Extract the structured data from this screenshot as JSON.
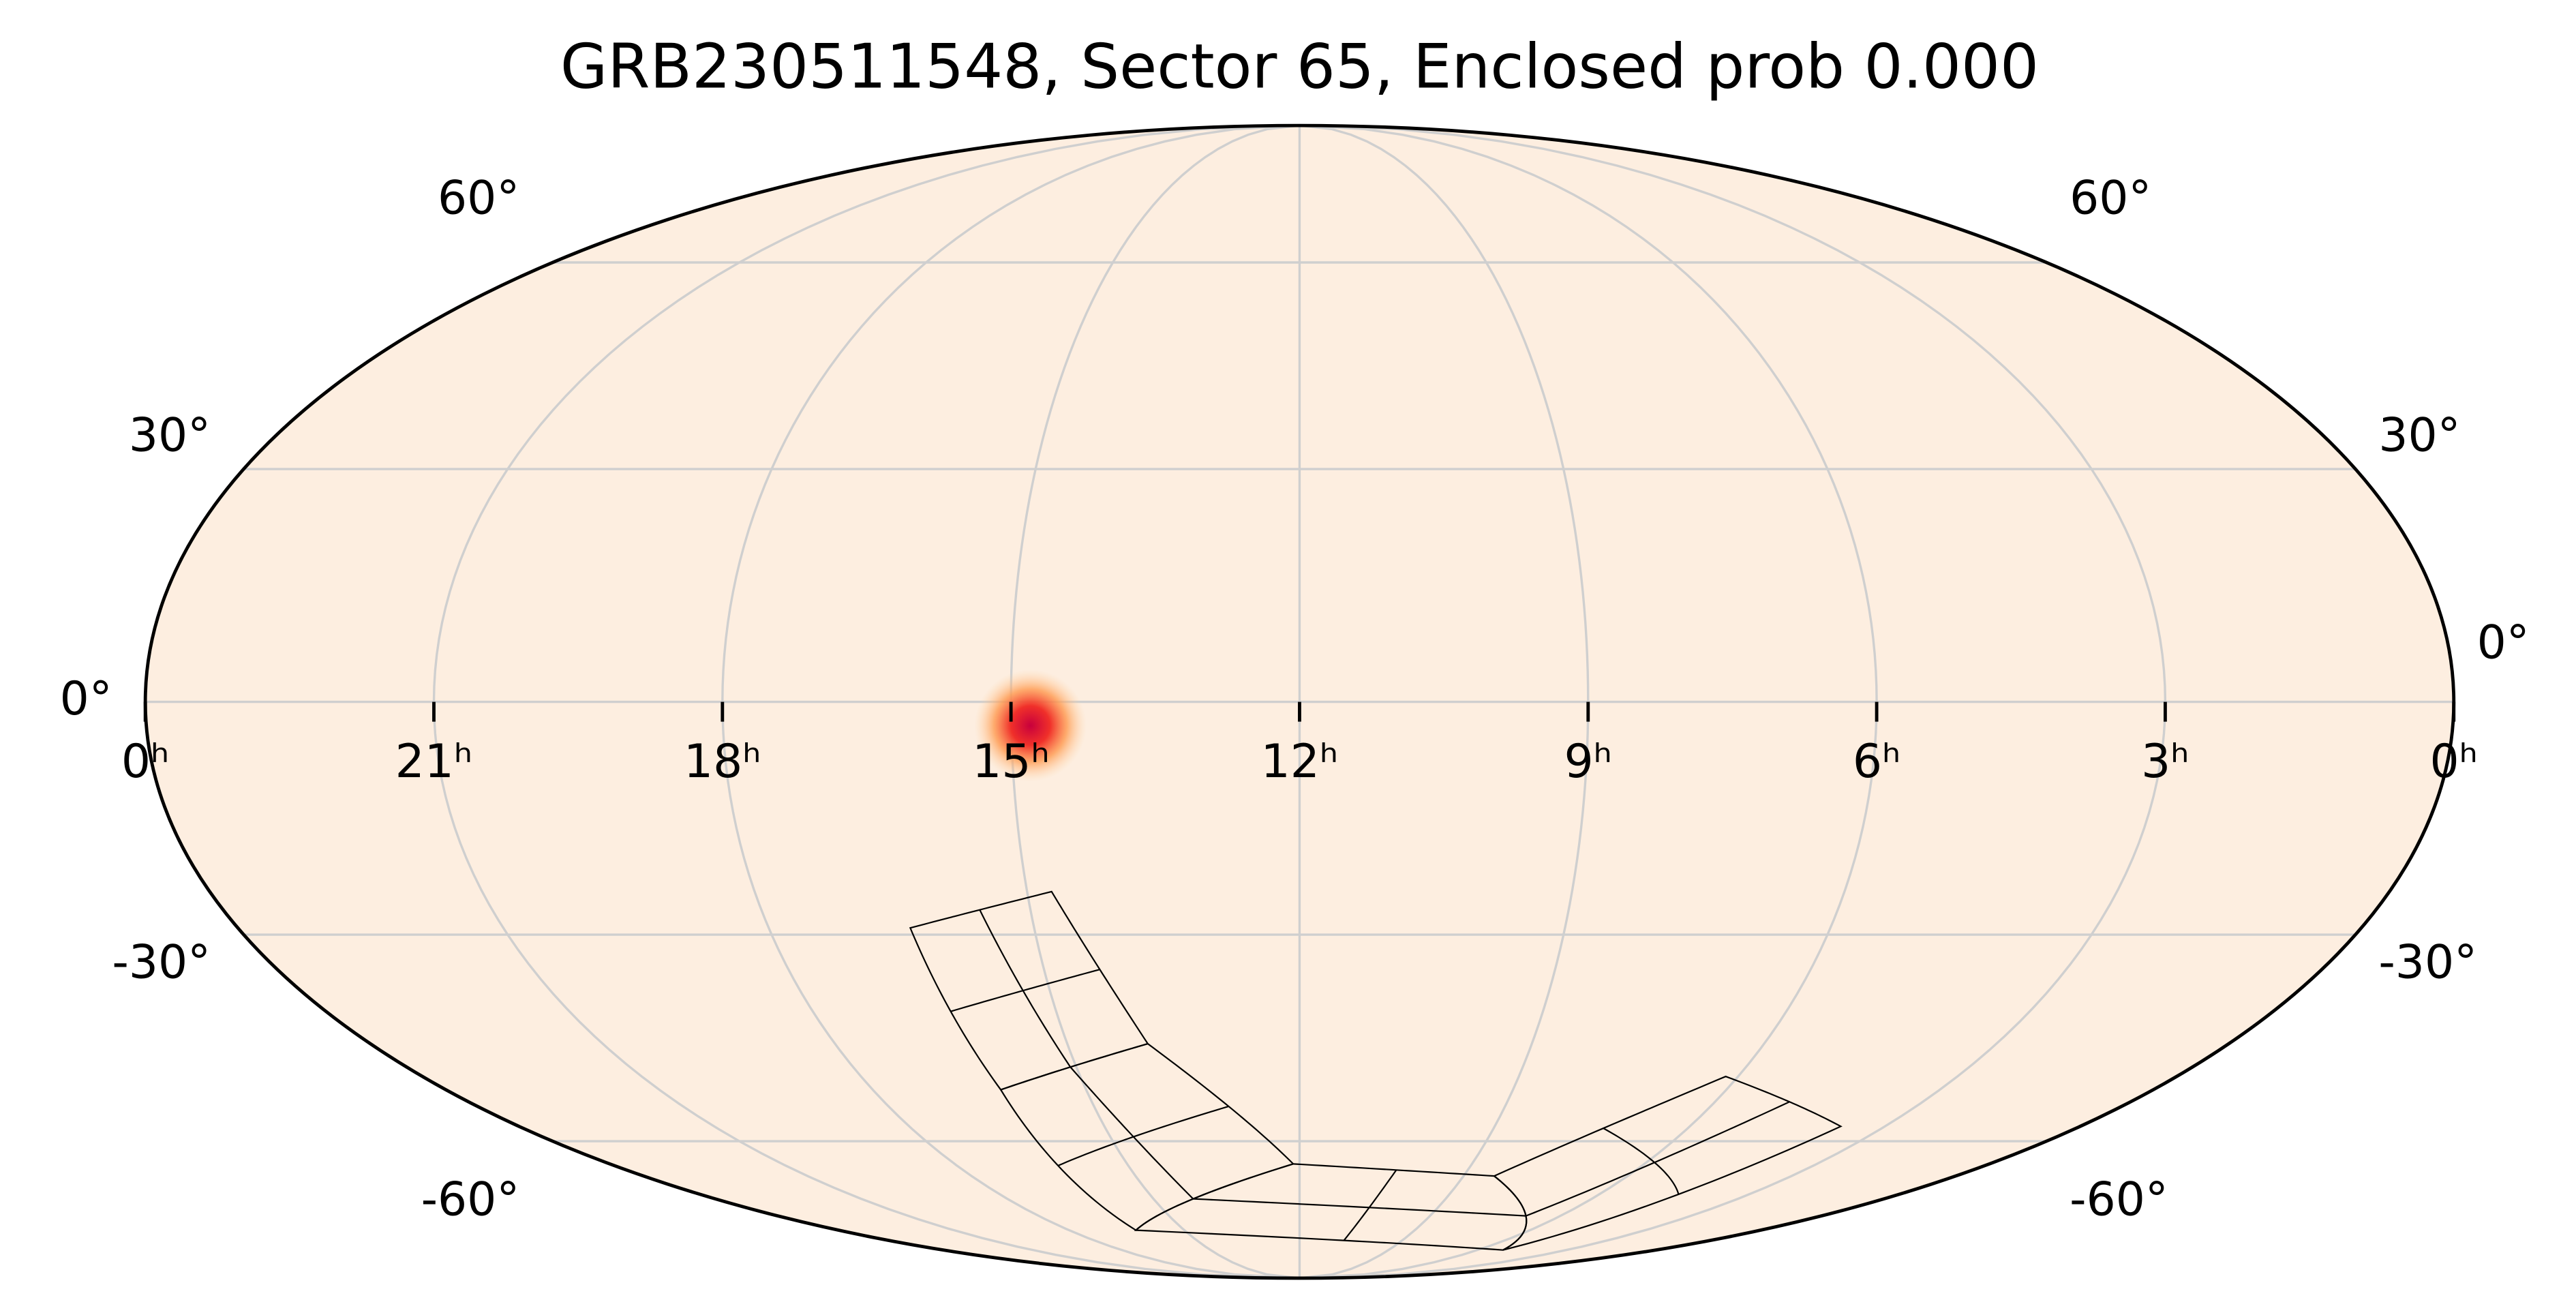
{
  "chart_data": {
    "type": "mollweide",
    "title": "GRB230511548, Sector 65, Enclosed prob 0.000",
    "xlim": [
      24,
      0
    ],
    "ylim": [
      -90,
      90
    ],
    "xticks": [
      {
        "value": 24,
        "label": "0ʰ"
      },
      {
        "value": 21,
        "label": "21ʰ"
      },
      {
        "value": 18,
        "label": "18ʰ"
      },
      {
        "value": 15,
        "label": "15ʰ"
      },
      {
        "value": 12,
        "label": "12ʰ"
      },
      {
        "value": 9,
        "label": "9ʰ"
      },
      {
        "value": 6,
        "label": "6ʰ"
      },
      {
        "value": 3,
        "label": "3ʰ"
      },
      {
        "value": 0,
        "label": "0ʰ"
      }
    ],
    "yticks": [
      {
        "value": -60,
        "label": "-60°"
      },
      {
        "value": -30,
        "label": "-30°"
      },
      {
        "value": 0,
        "label": "0°"
      },
      {
        "value": 30,
        "label": "30°"
      },
      {
        "value": 60,
        "label": "60°"
      }
    ],
    "grid": true,
    "background_color": "#fdeee0",
    "hotspot": {
      "ra": 14.8,
      "dec": -3
    },
    "cameras": [
      [
        [
          16.4,
          -29.1
        ],
        [
          14.73,
          -24.3
        ],
        [
          13.96,
          -45.1
        ],
        [
          16.2,
          -51.9
        ]
      ],
      [
        [
          16.2,
          -51.9
        ],
        [
          13.96,
          -45.1
        ],
        [
          12.11,
          -63.8
        ],
        [
          16.26,
          -76.3
        ]
      ],
      [
        [
          16.26,
          -76.3
        ],
        [
          12.11,
          -63.8
        ],
        [
          8.44,
          -65.9
        ],
        [
          5.15,
          -80.8
        ]
      ],
      [
        [
          8.44,
          -65.9
        ],
        [
          6.17,
          -49.9
        ],
        [
          3.68,
          -57.6
        ],
        [
          5.15,
          -80.8
        ]
      ]
    ]
  }
}
